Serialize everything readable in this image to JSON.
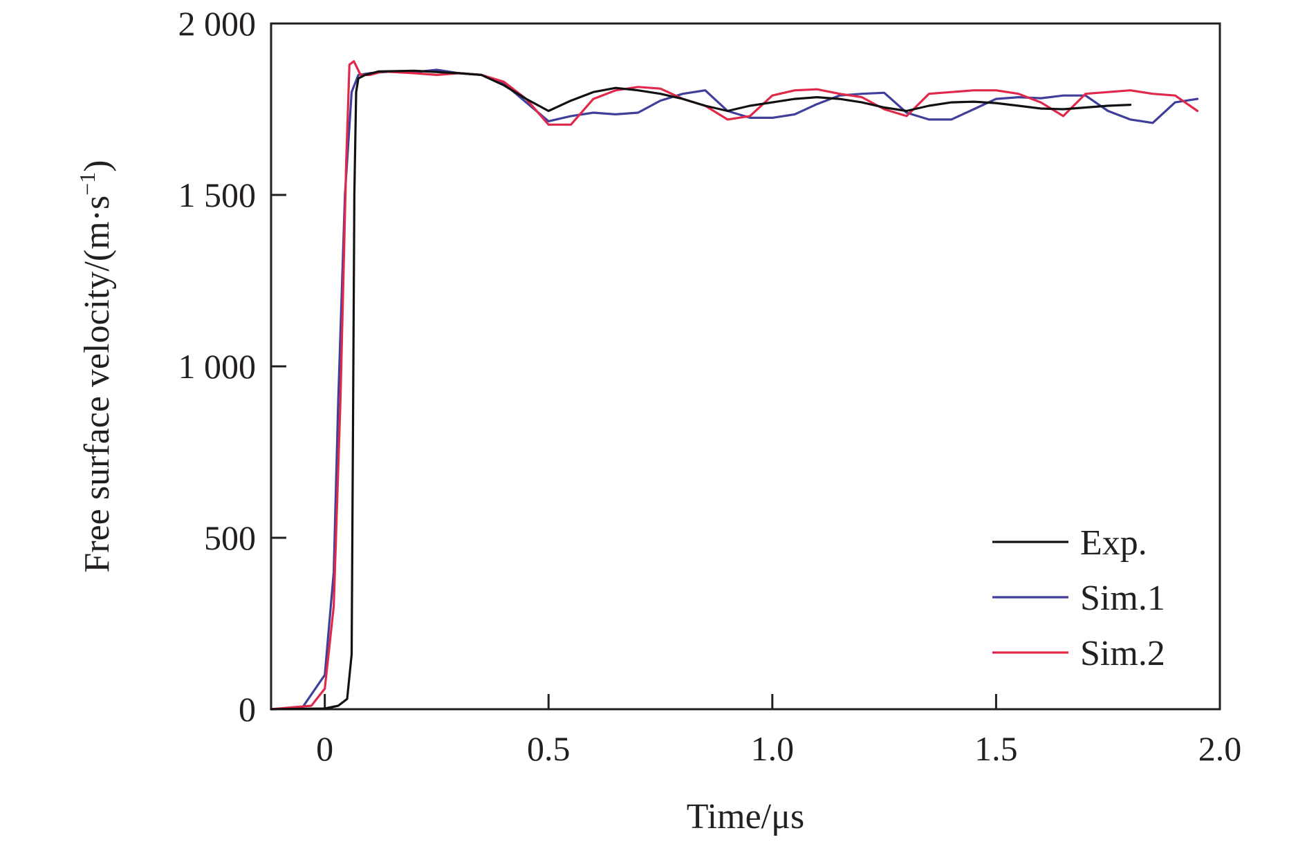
{
  "chart_data": {
    "type": "line",
    "title": "",
    "xlabel": "Time/μs",
    "ylabel_main": "Free surface velocity/(m·s",
    "ylabel_sup": "−1",
    "ylabel_close": ")",
    "xlim": [
      -0.12,
      2.0
    ],
    "ylim": [
      0,
      2000
    ],
    "x_ticks": [
      0,
      0.5,
      1.0,
      1.5,
      2.0
    ],
    "x_tick_labels": [
      "0",
      "0.5",
      "1.0",
      "1.5",
      "2.0"
    ],
    "y_ticks": [
      0,
      500,
      1000,
      1500,
      2000
    ],
    "y_tick_labels": [
      "0",
      "500",
      "1 000",
      "1 500",
      "2 000"
    ],
    "grid": false,
    "legend_position": "bottom-right",
    "series": [
      {
        "name": "Exp.",
        "color": "#111111",
        "x": [
          -0.12,
          0.0,
          0.03,
          0.05,
          0.06,
          0.063,
          0.066,
          0.07,
          0.075,
          0.09,
          0.12,
          0.2,
          0.3,
          0.35,
          0.4,
          0.45,
          0.5,
          0.55,
          0.6,
          0.65,
          0.7,
          0.75,
          0.8,
          0.85,
          0.9,
          0.95,
          1.0,
          1.05,
          1.1,
          1.15,
          1.2,
          1.25,
          1.3,
          1.35,
          1.4,
          1.45,
          1.5,
          1.55,
          1.6,
          1.65,
          1.7,
          1.75,
          1.8
        ],
        "y": [
          0,
          2,
          10,
          30,
          160,
          800,
          1500,
          1800,
          1840,
          1850,
          1860,
          1862,
          1855,
          1850,
          1820,
          1780,
          1745,
          1775,
          1800,
          1812,
          1805,
          1795,
          1780,
          1760,
          1745,
          1760,
          1770,
          1780,
          1785,
          1780,
          1770,
          1755,
          1745,
          1760,
          1770,
          1772,
          1768,
          1760,
          1752,
          1750,
          1755,
          1760,
          1763
        ]
      },
      {
        "name": "Sim.1",
        "color": "#3f3f9a",
        "x": [
          -0.12,
          -0.05,
          0.0,
          0.02,
          0.03,
          0.045,
          0.06,
          0.075,
          0.1,
          0.15,
          0.2,
          0.25,
          0.3,
          0.35,
          0.4,
          0.45,
          0.5,
          0.55,
          0.6,
          0.65,
          0.7,
          0.75,
          0.8,
          0.85,
          0.9,
          0.95,
          1.0,
          1.05,
          1.1,
          1.15,
          1.2,
          1.25,
          1.3,
          1.35,
          1.4,
          1.45,
          1.5,
          1.55,
          1.6,
          1.65,
          1.7,
          1.75,
          1.8,
          1.85,
          1.9,
          1.95
        ],
        "y": [
          0,
          5,
          100,
          400,
          900,
          1500,
          1800,
          1850,
          1855,
          1860,
          1858,
          1865,
          1855,
          1850,
          1825,
          1770,
          1715,
          1730,
          1740,
          1735,
          1740,
          1775,
          1795,
          1805,
          1745,
          1725,
          1725,
          1735,
          1765,
          1790,
          1795,
          1798,
          1740,
          1720,
          1720,
          1750,
          1780,
          1785,
          1782,
          1790,
          1790,
          1745,
          1720,
          1710,
          1770,
          1780
        ]
      },
      {
        "name": "Sim.2",
        "color": "#e0294a",
        "x": [
          -0.12,
          -0.03,
          0.0,
          0.02,
          0.035,
          0.048,
          0.055,
          0.065,
          0.08,
          0.1,
          0.13,
          0.2,
          0.25,
          0.3,
          0.35,
          0.4,
          0.45,
          0.5,
          0.55,
          0.6,
          0.65,
          0.7,
          0.75,
          0.8,
          0.85,
          0.9,
          0.95,
          1.0,
          1.05,
          1.1,
          1.15,
          1.2,
          1.25,
          1.3,
          1.35,
          1.4,
          1.45,
          1.5,
          1.55,
          1.6,
          1.65,
          1.7,
          1.75,
          1.8,
          1.85,
          1.9,
          1.95
        ],
        "y": [
          0,
          10,
          60,
          300,
          900,
          1600,
          1880,
          1890,
          1850,
          1850,
          1860,
          1855,
          1850,
          1855,
          1850,
          1830,
          1780,
          1705,
          1705,
          1780,
          1805,
          1815,
          1810,
          1780,
          1760,
          1720,
          1730,
          1790,
          1805,
          1808,
          1795,
          1785,
          1750,
          1730,
          1795,
          1800,
          1805,
          1805,
          1795,
          1770,
          1730,
          1795,
          1800,
          1805,
          1795,
          1790,
          1745
        ]
      }
    ]
  }
}
